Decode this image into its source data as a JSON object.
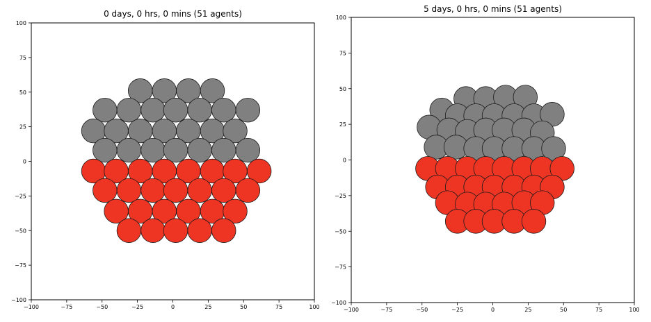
{
  "chart_data": [
    {
      "type": "scatter",
      "title": "0 days, 0 hrs, 0 mins (51 agents)",
      "xlabel": "",
      "ylabel": "",
      "xlim": [
        -100,
        100
      ],
      "ylim": [
        -100,
        100
      ],
      "xticks": [
        -100,
        -75,
        -50,
        -25,
        0,
        25,
        50,
        75,
        100
      ],
      "yticks": [
        -100,
        -75,
        -50,
        -25,
        0,
        25,
        50,
        75,
        100
      ],
      "xtick_labels": [
        "−100",
        "−75",
        "−50",
        "−25",
        "0",
        "25",
        "50",
        "75",
        "100"
      ],
      "ytick_labels": [
        "−100",
        "−75",
        "−50",
        "−25",
        "0",
        "25",
        "50",
        "75",
        "100"
      ],
      "grid": false,
      "marker": "circle",
      "series": [
        {
          "color": "#808080",
          "points": [
            [
              -23,
              51
            ],
            [
              -6,
              51
            ],
            [
              11,
              51
            ],
            [
              28,
              51
            ],
            [
              -48,
              37
            ],
            [
              -31,
              37
            ],
            [
              -14,
              37
            ],
            [
              2,
              37
            ],
            [
              19,
              37
            ],
            [
              36,
              37
            ],
            [
              53,
              37
            ],
            [
              -56,
              22
            ],
            [
              -40,
              22
            ],
            [
              -23,
              22
            ],
            [
              -6,
              22
            ],
            [
              11,
              22
            ],
            [
              28,
              22
            ],
            [
              44,
              22
            ],
            [
              -48,
              8
            ],
            [
              -31,
              8
            ],
            [
              -14,
              8
            ],
            [
              2,
              8
            ],
            [
              19,
              8
            ],
            [
              36,
              8
            ],
            [
              53,
              8
            ]
          ]
        },
        {
          "color": "#ee3524",
          "points": [
            [
              -56,
              -7
            ],
            [
              -40,
              -7
            ],
            [
              -23,
              -7
            ],
            [
              -6,
              -7
            ],
            [
              11,
              -7
            ],
            [
              28,
              -7
            ],
            [
              44,
              -7
            ],
            [
              61,
              -7
            ],
            [
              -48,
              -21
            ],
            [
              -31,
              -21
            ],
            [
              -14,
              -21
            ],
            [
              2,
              -21
            ],
            [
              19,
              -21
            ],
            [
              36,
              -21
            ],
            [
              53,
              -21
            ],
            [
              -40,
              -36
            ],
            [
              -23,
              -36
            ],
            [
              -6,
              -36
            ],
            [
              11,
              -36
            ],
            [
              28,
              -36
            ],
            [
              44,
              -36
            ],
            [
              -31,
              -50
            ],
            [
              -14,
              -50
            ],
            [
              2,
              -50
            ],
            [
              19,
              -50
            ],
            [
              36,
              -50
            ]
          ]
        }
      ]
    },
    {
      "type": "scatter",
      "title": "5 days, 0 hrs, 0 mins (51 agents)",
      "xlabel": "",
      "ylabel": "",
      "xlim": [
        -100,
        100
      ],
      "ylim": [
        -100,
        100
      ],
      "xticks": [
        -100,
        -75,
        -50,
        -25,
        0,
        25,
        50,
        75,
        100
      ],
      "yticks": [
        -100,
        -75,
        -50,
        -25,
        0,
        25,
        50,
        75,
        100
      ],
      "xtick_labels": [
        "−100",
        "−75",
        "−50",
        "−25",
        "0",
        "25",
        "50",
        "75",
        "100"
      ],
      "ytick_labels": [
        "−100",
        "−75",
        "−50",
        "−25",
        "0",
        "25",
        "50",
        "75",
        "100"
      ],
      "grid": false,
      "marker": "circle",
      "series": [
        {
          "color": "#808080",
          "points": [
            [
              -19,
              43
            ],
            [
              -5,
              43
            ],
            [
              9,
              44
            ],
            [
              23,
              44
            ],
            [
              -36,
              35
            ],
            [
              -25,
              31
            ],
            [
              -12,
              31
            ],
            [
              1,
              31
            ],
            [
              15,
              31
            ],
            [
              29,
              31
            ],
            [
              42,
              32
            ],
            [
              -45,
              23
            ],
            [
              -31,
              21
            ],
            [
              -18,
              20
            ],
            [
              -5,
              21
            ],
            [
              8,
              21
            ],
            [
              22,
              21
            ],
            [
              35,
              19
            ],
            [
              -40,
              9
            ],
            [
              -26,
              9
            ],
            [
              -12,
              8
            ],
            [
              1,
              8
            ],
            [
              15,
              8
            ],
            [
              29,
              8
            ],
            [
              43,
              8
            ]
          ]
        },
        {
          "color": "#ee3524",
          "points": [
            [
              -46,
              -6
            ],
            [
              -32,
              -6
            ],
            [
              -18,
              -6
            ],
            [
              -5,
              -6
            ],
            [
              8,
              -6
            ],
            [
              22,
              -6
            ],
            [
              35,
              -6
            ],
            [
              49,
              -6
            ],
            [
              -39,
              -19
            ],
            [
              -25,
              -19
            ],
            [
              -12,
              -19
            ],
            [
              1,
              -19
            ],
            [
              15,
              -19
            ],
            [
              29,
              -19
            ],
            [
              42,
              -19
            ],
            [
              -32,
              -30
            ],
            [
              -18,
              -31
            ],
            [
              -5,
              -31
            ],
            [
              8,
              -31
            ],
            [
              22,
              -30
            ],
            [
              35,
              -30
            ],
            [
              -25,
              -43
            ],
            [
              -12,
              -43
            ],
            [
              1,
              -43
            ],
            [
              15,
              -43
            ],
            [
              29,
              -43
            ]
          ]
        }
      ]
    }
  ]
}
